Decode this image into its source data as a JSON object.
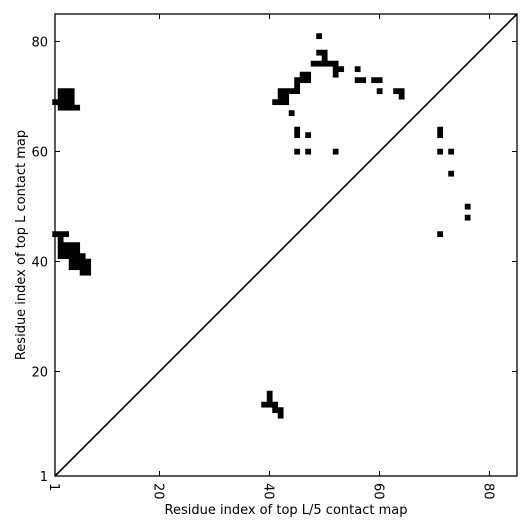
{
  "chart_data": {
    "type": "heatmap",
    "title": "",
    "xlabel": "Residue index of top L/5 contact map",
    "ylabel": "Residue index of top L contact map",
    "xlim": [
      1,
      85
    ],
    "ylim": [
      1,
      85
    ],
    "xticks": [
      1,
      20,
      40,
      60,
      80
    ],
    "yticks": [
      1,
      20,
      40,
      60,
      80
    ],
    "xtick_labels": [
      "1",
      "20",
      "40",
      "60",
      "80"
    ],
    "ytick_labels": [
      "1",
      "20",
      "40",
      "60",
      "80"
    ],
    "diagonal": {
      "from": [
        1,
        1
      ],
      "to": [
        85,
        85
      ]
    },
    "colors": {
      "contact": "#000000",
      "background": "#ffffff"
    },
    "series": [
      {
        "values": [
          [
            1,
            69
          ],
          [
            2,
            68
          ],
          [
            2,
            69
          ],
          [
            2,
            70
          ],
          [
            2,
            71
          ],
          [
            3,
            68
          ],
          [
            3,
            69
          ],
          [
            3,
            70
          ],
          [
            3,
            71
          ],
          [
            4,
            68
          ],
          [
            4,
            69
          ],
          [
            4,
            70
          ],
          [
            4,
            71
          ],
          [
            5,
            68
          ],
          [
            1,
            45
          ],
          [
            2,
            45
          ],
          [
            2,
            44
          ],
          [
            2,
            43
          ],
          [
            2,
            42
          ],
          [
            2,
            41
          ],
          [
            3,
            45
          ],
          [
            3,
            43
          ],
          [
            3,
            42
          ],
          [
            3,
            41
          ],
          [
            4,
            43
          ],
          [
            4,
            42
          ],
          [
            4,
            41
          ],
          [
            4,
            40
          ],
          [
            4,
            39
          ],
          [
            5,
            43
          ],
          [
            5,
            42
          ],
          [
            5,
            41
          ],
          [
            5,
            40
          ],
          [
            5,
            39
          ],
          [
            6,
            41
          ],
          [
            6,
            40
          ],
          [
            6,
            39
          ],
          [
            6,
            38
          ],
          [
            7,
            40
          ],
          [
            7,
            39
          ],
          [
            7,
            38
          ],
          [
            39,
            14
          ],
          [
            40,
            14
          ],
          [
            40,
            15
          ],
          [
            40,
            16
          ],
          [
            41,
            14
          ],
          [
            41,
            13
          ],
          [
            42,
            13
          ],
          [
            42,
            12
          ],
          [
            41,
            69
          ],
          [
            42,
            69
          ],
          [
            42,
            70
          ],
          [
            42,
            71
          ],
          [
            43,
            69
          ],
          [
            43,
            70
          ],
          [
            43,
            71
          ],
          [
            44,
            71
          ],
          [
            45,
            71
          ],
          [
            45,
            72
          ],
          [
            45,
            73
          ],
          [
            46,
            73
          ],
          [
            46,
            74
          ],
          [
            47,
            73
          ],
          [
            47,
            74
          ],
          [
            48,
            76
          ],
          [
            49,
            76
          ],
          [
            49,
            78
          ],
          [
            50,
            76
          ],
          [
            50,
            77
          ],
          [
            50,
            78
          ],
          [
            51,
            76
          ],
          [
            52,
            74
          ],
          [
            52,
            75
          ],
          [
            52,
            76
          ],
          [
            53,
            75
          ],
          [
            49,
            81
          ],
          [
            44,
            67
          ],
          [
            45,
            64
          ],
          [
            45,
            63
          ],
          [
            47,
            63
          ],
          [
            45,
            60
          ],
          [
            47,
            60
          ],
          [
            52,
            60
          ],
          [
            56,
            75
          ],
          [
            56,
            73
          ],
          [
            57,
            73
          ],
          [
            59,
            73
          ],
          [
            60,
            73
          ],
          [
            60,
            71
          ],
          [
            63,
            71
          ],
          [
            64,
            71
          ],
          [
            64,
            70
          ],
          [
            71,
            64
          ],
          [
            71,
            63
          ],
          [
            71,
            60
          ],
          [
            73,
            60
          ],
          [
            73,
            56
          ],
          [
            76,
            50
          ],
          [
            76,
            48
          ],
          [
            71,
            45
          ]
        ]
      }
    ]
  }
}
